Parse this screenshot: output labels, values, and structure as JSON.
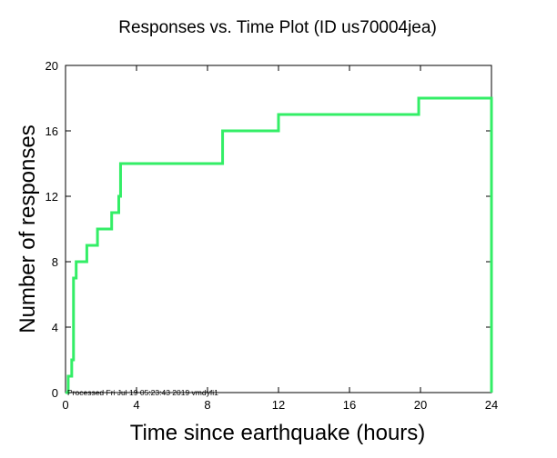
{
  "chart_data": {
    "type": "line",
    "title": "Responses vs. Time Plot (ID us70004jea)",
    "xlabel": "Time since earthquake (hours)",
    "ylabel": "Number of responses",
    "xlim": [
      0,
      24
    ],
    "ylim": [
      0,
      20
    ],
    "x_ticks": [
      0,
      4,
      8,
      12,
      16,
      20,
      24
    ],
    "y_ticks": [
      0,
      4,
      8,
      12,
      16,
      20
    ],
    "grid": false,
    "series": [
      {
        "color": "#33ee66",
        "step": true,
        "x": [
          0,
          0.15,
          0.35,
          0.45,
          0.6,
          1.2,
          1.8,
          2.6,
          3.0,
          3.1,
          8.85,
          12.0,
          19.9,
          24.0,
          24.0
        ],
        "y": [
          0,
          1,
          2,
          7,
          8,
          9,
          10,
          11,
          12,
          14,
          16,
          17,
          18,
          18,
          0
        ]
      }
    ]
  },
  "footer_note": "Processed Fri Jul 19 05:23:43 2019 vmdyfi1"
}
